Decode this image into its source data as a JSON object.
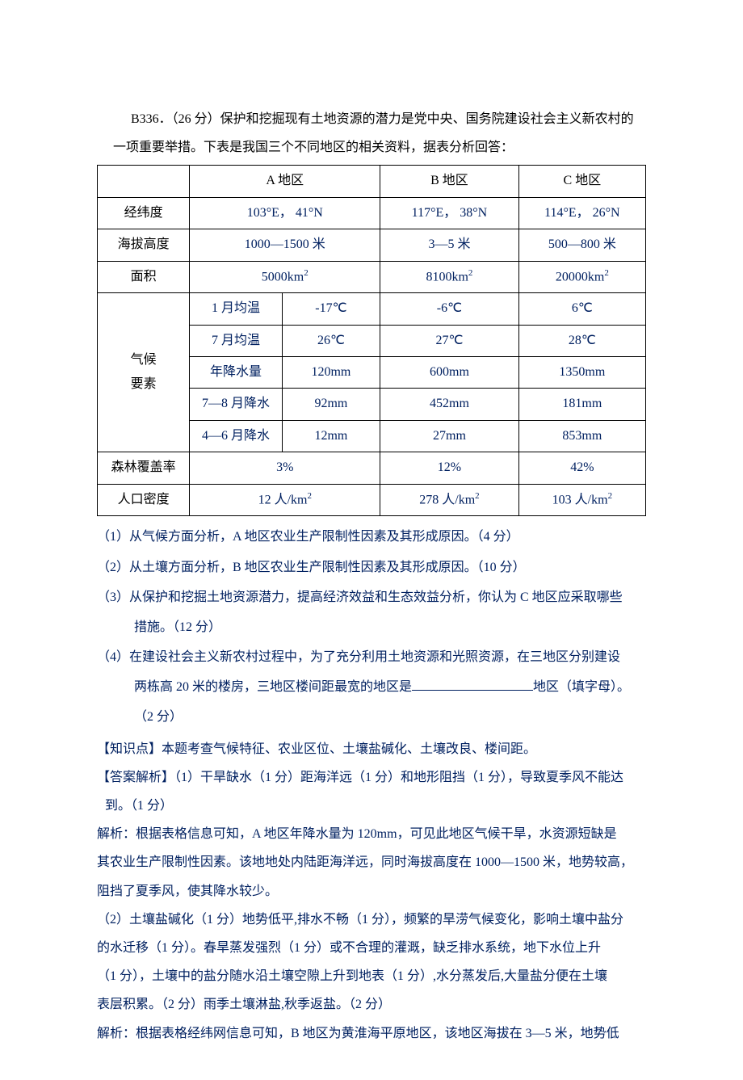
{
  "intro": {
    "line1": "B336．（26 分）保护和挖掘现有土地资源的潜力是党中央、国务院建设社会主义新农村的",
    "line2": "一项重要举措。下表是我国三个不同地区的相关资料，据表分析回答："
  },
  "table": {
    "header": {
      "a": "A 地区",
      "b": "B 地区",
      "c": "C 地区"
    },
    "rows": {
      "latlon": {
        "label": "经纬度",
        "a": "103°E，  41°N",
        "b": "117°E，  38°N",
        "c": "114°E，  26°N"
      },
      "elev": {
        "label": "海拔高度",
        "a": "1000—1500 米",
        "b": "3—5 米",
        "c": "500—800 米"
      },
      "area": {
        "label": "面积",
        "a": "5000km",
        "b": "8100km",
        "c": "20000km"
      },
      "climate_label": "气候\n要素",
      "jan": {
        "label": "1 月均温",
        "a": "-17℃",
        "b": "-6℃",
        "c": "6℃"
      },
      "jul": {
        "label": "7 月均温",
        "a": "26℃",
        "b": "27℃",
        "c": "28℃"
      },
      "precip": {
        "label": "年降水量",
        "a": "120mm",
        "b": "600mm",
        "c": "1350mm"
      },
      "p78": {
        "label": "7—8 月降水",
        "a": "92mm",
        "b": "452mm",
        "c": "181mm"
      },
      "p46": {
        "label": "4—6 月降水",
        "a": "12mm",
        "b": "27mm",
        "c": "853mm"
      },
      "forest": {
        "label": "森林覆盖率",
        "a": "3%",
        "b": "12%",
        "c": "42%"
      },
      "pop": {
        "label": "人口密度",
        "a": "12 人/km",
        "b": "278 人/km",
        "c": "103 人/km"
      }
    }
  },
  "questions": {
    "q1": "（1）从气候方面分析，A 地区农业生产限制性因素及其形成原因。（4 分）",
    "q2": "（2）从土壤方面分析，B 地区农业生产限制性因素及其形成原因。（10 分）",
    "q3a": "（3）从保护和挖掘土地资源潜力，提高经济效益和生态效益分析，你认为 C 地区应采取哪些",
    "q3b": "措施。（12 分）",
    "q4a": "（4）在建设社会主义新农村过程中，为了充分利用土地资源和光照资源，在三地区分别建设",
    "q4b_pre": "两栋高 20 米的楼房，三地区楼间距最宽的地区是",
    "q4b_post": "地区（填字母）。",
    "q4c": "（2 分）"
  },
  "knowledge": {
    "label": "【知识点】",
    "text": "本题考查气候特征、农业区位、土壤盐碱化、土壤改良、楼间距。"
  },
  "answers": {
    "label": "【答案解析】",
    "a1a": "（1）干旱缺水（1 分）距海洋远（1 分）和地形阻挡（1 分），导致夏季风不能达",
    "a1b": "到。（1 分）",
    "exp1a": "解析：根据表格信息可知，A 地区年降水量为 120mm，可见此地区气候干旱，水资源短缺是",
    "exp1b": "其农业生产限制性因素。该地地处内陆距海洋远，同时海拔高度在 1000—1500 米，地势较高，",
    "exp1c": "阻挡了夏季风，使其降水较少。",
    "a2a": "（2）土壤盐碱化（1 分）地势低平,排水不畅（1 分），频繁的旱涝气候变化，影响土壤中盐分",
    "a2b": "的水迁移（1 分）。春旱蒸发强烈（1 分）或不合理的灌溉，缺乏排水系统，地下水位上升",
    "a2c": "（1 分），土壤中的盐分随水沿土壤空隙上升到地表（1 分）,水分蒸发后,大量盐分便在土壤",
    "a2d": "表层积累。（2 分）雨季土壤淋盐,秋季返盐。（2 分）",
    "exp2a": "解析：根据表格经纬网信息可知，B 地区为黄淮海平原地区，该地区海拔在 3—5 米，地势低"
  },
  "colors": {
    "text_black": "#000000",
    "text_blue": "#002060",
    "border": "#000000",
    "background": "#ffffff"
  }
}
